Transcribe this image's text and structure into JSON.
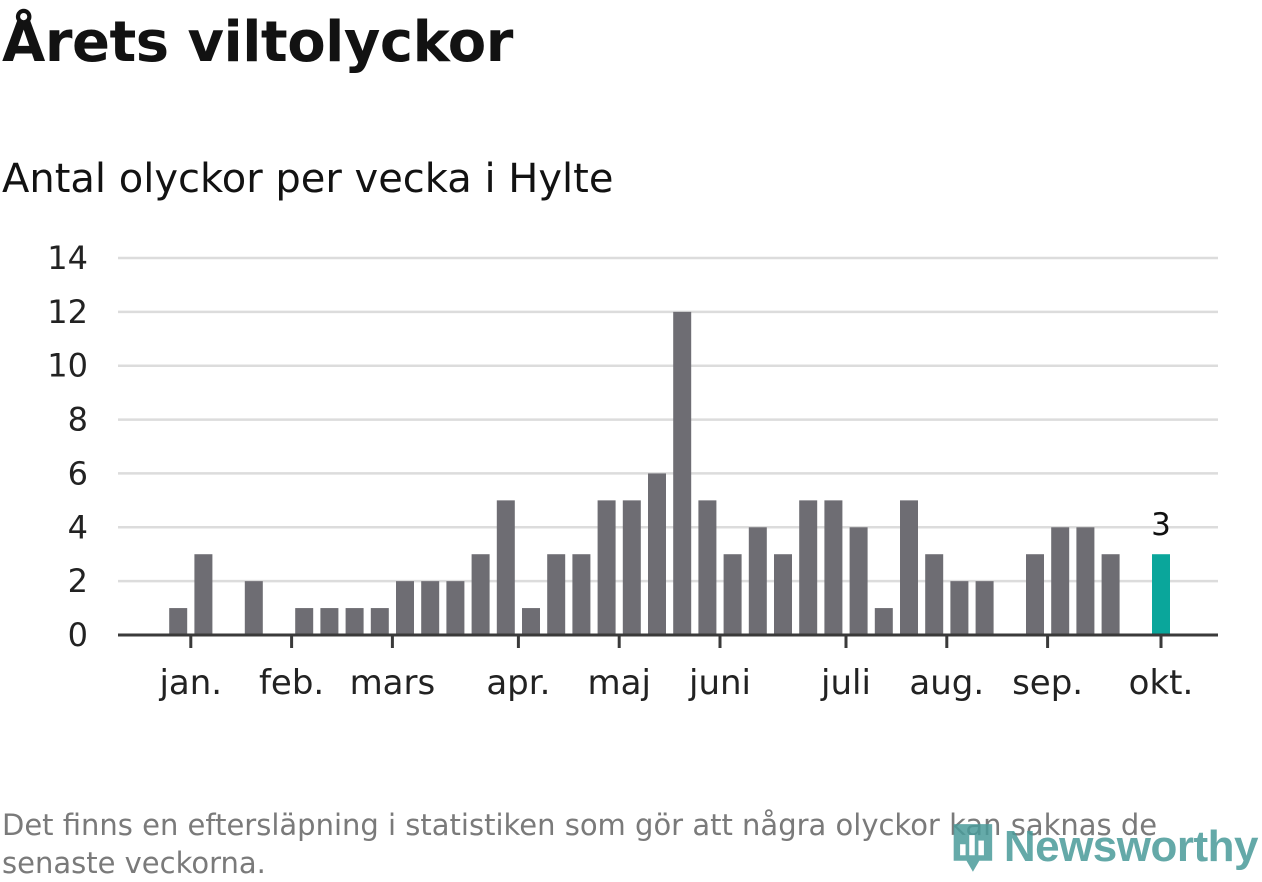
{
  "title": "Årets viltolyckor",
  "subtitle": "Antal olyckor per vecka i Hylte",
  "footnote": "Det finns en eftersläpning i statistiken som gör att några olyckor kan saknas de senaste veckorna.",
  "logo": {
    "text": "Newsworthy",
    "icon": "bar-chart-pin-icon"
  },
  "colors": {
    "bar": "#6e6d73",
    "highlight": "#0aa69b",
    "grid": "#dcdcdc",
    "axis": "#3a3a3a"
  },
  "chart_data": {
    "type": "bar",
    "ylim": [
      0,
      14
    ],
    "yticks": [
      0,
      2,
      4,
      6,
      8,
      10,
      12,
      14
    ],
    "grid": true,
    "weeks": [
      1,
      2,
      3,
      4,
      5,
      6,
      7,
      8,
      9,
      10,
      11,
      12,
      13,
      14,
      15,
      16,
      17,
      18,
      19,
      20,
      21,
      22,
      23,
      24,
      25,
      26,
      27,
      28,
      29,
      30,
      31,
      32,
      33,
      34,
      35,
      36,
      37,
      38,
      39,
      40,
      41
    ],
    "values": [
      0,
      1,
      3,
      0,
      2,
      0,
      1,
      1,
      1,
      1,
      2,
      2,
      2,
      3,
      5,
      1,
      3,
      3,
      5,
      5,
      6,
      12,
      5,
      3,
      4,
      3,
      5,
      5,
      4,
      1,
      5,
      3,
      2,
      2,
      0,
      3,
      4,
      4,
      3,
      0,
      3
    ],
    "highlight_index": 40,
    "highlight_label": "3",
    "months": [
      {
        "label": "jan.",
        "week": 2.5
      },
      {
        "label": "feb.",
        "week": 6.5
      },
      {
        "label": "mars",
        "week": 10.5
      },
      {
        "label": "apr.",
        "week": 15.5
      },
      {
        "label": "maj",
        "week": 19.5
      },
      {
        "label": "juni",
        "week": 23.5
      },
      {
        "label": "juli",
        "week": 28.5
      },
      {
        "label": "aug.",
        "week": 32.5
      },
      {
        "label": "sep.",
        "week": 36.5
      },
      {
        "label": "okt.",
        "week": 41
      }
    ]
  }
}
